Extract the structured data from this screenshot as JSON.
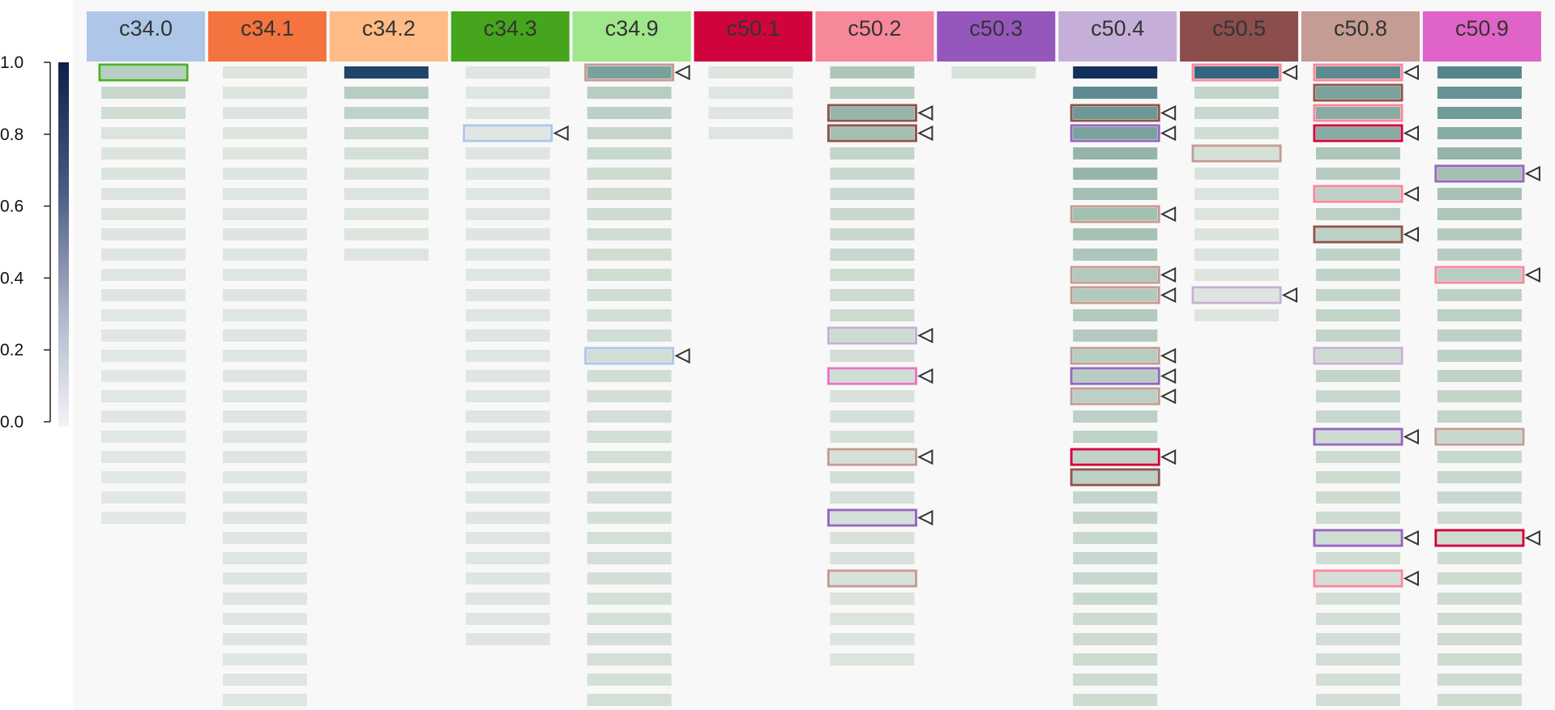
{
  "chart_data": {
    "type": "heatmap",
    "colorbar": {
      "range": [
        0,
        1
      ],
      "ticks": [
        "1.0",
        "0.8",
        "0.6",
        "0.4",
        "0.2",
        "0.0"
      ],
      "color_high": "#0d1f4a",
      "color_low": "#f2f4f6"
    },
    "columns": [
      {
        "label": "c34.0",
        "color": "#aec7e8",
        "text_color": "#333333",
        "cells": [
          0.3,
          0.22,
          0.18,
          0.1,
          0.09,
          0.09,
          0.08,
          0.08,
          0.07,
          0.07,
          0.07,
          0.07,
          0.06,
          0.06,
          0.06,
          0.06,
          0.06,
          0.06,
          0.06,
          0.06,
          0.05,
          0.05,
          0.05
        ],
        "marks": [
          {
            "row": 0,
            "color": "#4caf2a",
            "arrow": false
          }
        ]
      },
      {
        "label": "c34.1",
        "color": "#f4733e",
        "text_color": "#333333",
        "cells": [
          0.08,
          0.08,
          0.08,
          0.08,
          0.08,
          0.07,
          0.07,
          0.07,
          0.07,
          0.07,
          0.07,
          0.07,
          0.07,
          0.07,
          0.07,
          0.07,
          0.07,
          0.07,
          0.07,
          0.07,
          0.07,
          0.07,
          0.07,
          0.07,
          0.07,
          0.07,
          0.07,
          0.07,
          0.07,
          0.07,
          0.07,
          0.07
        ],
        "marks": []
      },
      {
        "label": "c34.2",
        "color": "#ffbb85",
        "text_color": "#333333",
        "cells": [
          0.92,
          0.3,
          0.26,
          0.2,
          0.15,
          0.12,
          0.1,
          0.1,
          0.08,
          0.08
        ],
        "marks": []
      },
      {
        "label": "c34.3",
        "color": "#46a51d",
        "text_color": "#333333",
        "cells": [
          0.07,
          0.07,
          0.07,
          0.07,
          0.07,
          0.07,
          0.07,
          0.07,
          0.07,
          0.07,
          0.07,
          0.07,
          0.07,
          0.07,
          0.07,
          0.07,
          0.07,
          0.07,
          0.07,
          0.07,
          0.07,
          0.07,
          0.07,
          0.07,
          0.07,
          0.07,
          0.07,
          0.07,
          0.07
        ],
        "marks": [
          {
            "row": 3,
            "color": "#aec7e8",
            "arrow": true
          }
        ]
      },
      {
        "label": "c34.9",
        "color": "#a0e68a",
        "text_color": "#333333",
        "cells": [
          0.55,
          0.3,
          0.28,
          0.24,
          0.22,
          0.2,
          0.2,
          0.2,
          0.18,
          0.18,
          0.18,
          0.18,
          0.17,
          0.17,
          0.17,
          0.17,
          0.16,
          0.16,
          0.16,
          0.16,
          0.15,
          0.15,
          0.15,
          0.15,
          0.15,
          0.15,
          0.15,
          0.15,
          0.15,
          0.15,
          0.15,
          0.15
        ],
        "marks": [
          {
            "row": 0,
            "color": "#c49c94",
            "arrow": true
          },
          {
            "row": 14,
            "color": "#aec7e8",
            "arrow": true
          }
        ]
      },
      {
        "label": "c50.1",
        "color": "#d0043c",
        "text_color": "#333333",
        "cells": [
          0.08,
          0.07,
          0.07,
          0.07
        ],
        "marks": []
      },
      {
        "label": "c50.2",
        "color": "#f7889a",
        "text_color": "#333333",
        "cells": [
          0.35,
          0.3,
          0.45,
          0.4,
          0.25,
          0.22,
          0.22,
          0.22,
          0.22,
          0.22,
          0.2,
          0.2,
          0.2,
          0.2,
          0.16,
          0.18,
          0.12,
          0.14,
          0.14,
          0.14,
          0.16,
          0.14,
          0.14,
          0.12,
          0.12,
          0.12,
          0.1,
          0.1,
          0.1,
          0.09
        ],
        "marks": [
          {
            "row": 2,
            "color": "#8c564b",
            "arrow": true
          },
          {
            "row": 3,
            "color": "#8c564b",
            "arrow": true
          },
          {
            "row": 13,
            "color": "#c5b0d5",
            "arrow": true
          },
          {
            "row": 15,
            "color": "#e377c2",
            "arrow": true
          },
          {
            "row": 19,
            "color": "#c49c94",
            "arrow": true
          },
          {
            "row": 22,
            "color": "#9467bd",
            "arrow": true
          },
          {
            "row": 25,
            "color": "#c49c94",
            "arrow": false
          }
        ]
      },
      {
        "label": "c50.3",
        "color": "#9557bc",
        "text_color": "#333333",
        "cells": [
          0.12
        ],
        "marks": []
      },
      {
        "label": "c50.4",
        "color": "#c5afd8",
        "text_color": "#333333",
        "cells": [
          1.0,
          0.65,
          0.6,
          0.55,
          0.45,
          0.45,
          0.4,
          0.4,
          0.38,
          0.35,
          0.33,
          0.33,
          0.32,
          0.32,
          0.3,
          0.3,
          0.28,
          0.28,
          0.26,
          0.26,
          0.28,
          0.24,
          0.24,
          0.22,
          0.22,
          0.22,
          0.22,
          0.2,
          0.2,
          0.2,
          0.2,
          0.2
        ],
        "marks": [
          {
            "row": 2,
            "color": "#8c564b",
            "arrow": true
          },
          {
            "row": 3,
            "color": "#9467bd",
            "arrow": true
          },
          {
            "row": 7,
            "color": "#c49c94",
            "arrow": true
          },
          {
            "row": 10,
            "color": "#c49c94",
            "arrow": true
          },
          {
            "row": 11,
            "color": "#c49c94",
            "arrow": true
          },
          {
            "row": 14,
            "color": "#c49c94",
            "arrow": true
          },
          {
            "row": 15,
            "color": "#9467bd",
            "arrow": true
          },
          {
            "row": 16,
            "color": "#c49c94",
            "arrow": true
          },
          {
            "row": 19,
            "color": "#d0043c",
            "arrow": true
          },
          {
            "row": 20,
            "color": "#8c564b",
            "arrow": false
          }
        ]
      },
      {
        "label": "c50.5",
        "color": "#8b4e4c",
        "text_color": "#333333",
        "cells": [
          0.8,
          0.25,
          0.22,
          0.18,
          0.14,
          0.12,
          0.1,
          0.1,
          0.09,
          0.09,
          0.08,
          0.08,
          0.08
        ],
        "marks": [
          {
            "row": 0,
            "color": "#f7889a",
            "arrow": true
          },
          {
            "row": 4,
            "color": "#c49c94",
            "arrow": false
          },
          {
            "row": 11,
            "color": "#c5b0d5",
            "arrow": true
          }
        ]
      },
      {
        "label": "c50.8",
        "color": "#c49c94",
        "text_color": "#333333",
        "cells": [
          0.65,
          0.55,
          0.5,
          0.5,
          0.35,
          0.3,
          0.28,
          0.28,
          0.28,
          0.26,
          0.26,
          0.25,
          0.25,
          0.25,
          0.2,
          0.25,
          0.22,
          0.22,
          0.2,
          0.2,
          0.2,
          0.2,
          0.2,
          0.18,
          0.18,
          0.16,
          0.16,
          0.16,
          0.16,
          0.16,
          0.16,
          0.16
        ],
        "marks": [
          {
            "row": 0,
            "color": "#f7889a",
            "arrow": true
          },
          {
            "row": 1,
            "color": "#8c564b",
            "arrow": false
          },
          {
            "row": 2,
            "color": "#f7889a",
            "arrow": false
          },
          {
            "row": 3,
            "color": "#d0043c",
            "arrow": true
          },
          {
            "row": 6,
            "color": "#f7889a",
            "arrow": true
          },
          {
            "row": 8,
            "color": "#8c564b",
            "arrow": true
          },
          {
            "row": 14,
            "color": "#c5b0d5",
            "arrow": false
          },
          {
            "row": 18,
            "color": "#9467bd",
            "arrow": true
          },
          {
            "row": 23,
            "color": "#9467bd",
            "arrow": true
          },
          {
            "row": 25,
            "color": "#f7889a",
            "arrow": true
          }
        ]
      },
      {
        "label": "c50.9",
        "color": "#e063c8",
        "text_color": "#333333",
        "cells": [
          0.68,
          0.62,
          0.58,
          0.5,
          0.45,
          0.4,
          0.38,
          0.35,
          0.32,
          0.3,
          0.3,
          0.28,
          0.28,
          0.27,
          0.27,
          0.26,
          0.25,
          0.25,
          0.22,
          0.22,
          0.22,
          0.22,
          0.2,
          0.2,
          0.2,
          0.2,
          0.2,
          0.2,
          0.2,
          0.2,
          0.2,
          0.2
        ],
        "marks": [
          {
            "row": 5,
            "color": "#9467bd",
            "arrow": true
          },
          {
            "row": 10,
            "color": "#f7889a",
            "arrow": true
          },
          {
            "row": 18,
            "color": "#c49c94",
            "arrow": false
          },
          {
            "row": 23,
            "color": "#d0043c",
            "arrow": true
          }
        ]
      }
    ]
  }
}
